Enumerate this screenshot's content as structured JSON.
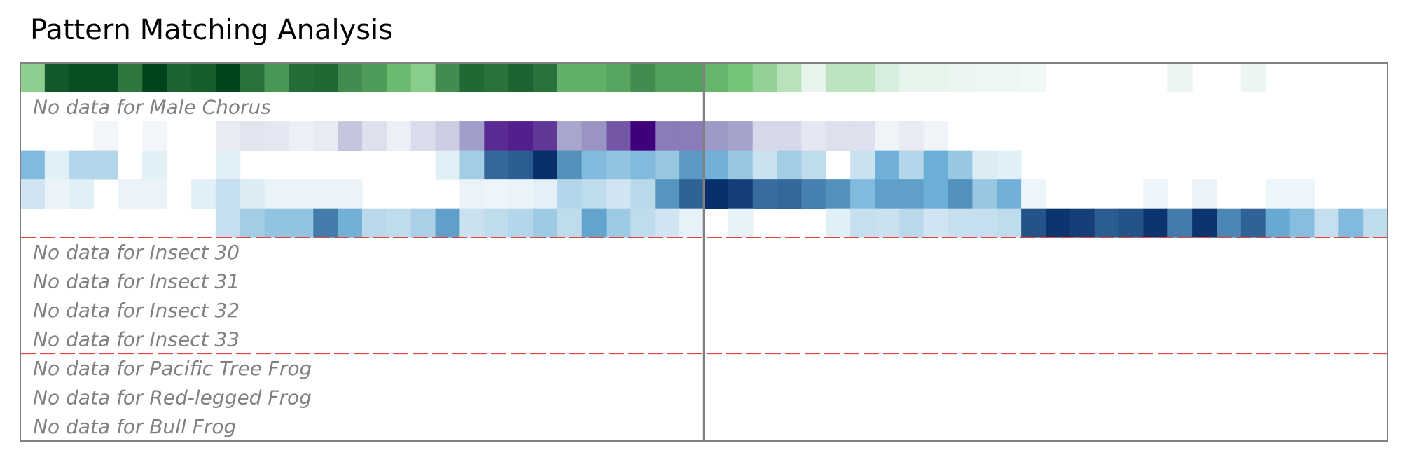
{
  "chart_data": {
    "type": "heatmap",
    "title": "Pattern Matching Analysis",
    "grid": false,
    "columns": 56,
    "group_separators_after_rows": [
      5,
      9
    ],
    "center_divider_after_column": 28,
    "colors": {
      "green": "#00441b",
      "purple": "#3f007d",
      "blue": "#08306b",
      "separator": "#e0443a",
      "frame": "#808080",
      "no_data_text": "#808080"
    },
    "rows": [
      {
        "palette": "green",
        "values": [
          0.4,
          0.92,
          0.96,
          0.96,
          0.8,
          1.0,
          0.88,
          0.9,
          1.0,
          0.82,
          0.68,
          0.84,
          0.86,
          0.72,
          0.66,
          0.54,
          0.42,
          0.72,
          0.86,
          0.82,
          0.88,
          0.82,
          0.58,
          0.58,
          0.62,
          0.72,
          0.64,
          0.64,
          0.56,
          0.5,
          0.38,
          0.24,
          0.06,
          0.22,
          0.22,
          0.12,
          0.06,
          0.06,
          0.05,
          0.04,
          0.04,
          0.03,
          0,
          0,
          0,
          0,
          0,
          0.05,
          0,
          0,
          0.05,
          0,
          0,
          0,
          0,
          0
        ]
      },
      {
        "label": "No data for Male Chorus"
      },
      {
        "palette": "purple",
        "values": [
          0,
          0,
          0,
          0.03,
          0,
          0.03,
          0,
          0,
          0.08,
          0.12,
          0.1,
          0.06,
          0.08,
          0.28,
          0.14,
          0.06,
          0.16,
          0.24,
          0.48,
          0.86,
          0.9,
          0.82,
          0.44,
          0.52,
          0.72,
          1.0,
          0.6,
          0.6,
          0.5,
          0.46,
          0.18,
          0.18,
          0.1,
          0.14,
          0.14,
          0.04,
          0.08,
          0.04,
          0,
          0,
          0,
          0,
          0,
          0,
          0,
          0,
          0,
          0,
          0,
          0,
          0,
          0,
          0,
          0,
          0,
          0
        ]
      },
      {
        "palette": "blue",
        "values": [
          0.42,
          0.08,
          0.24,
          0.24,
          0,
          0.08,
          0,
          0,
          0.08,
          0,
          0,
          0,
          0,
          0,
          0,
          0,
          0,
          0.08,
          0.3,
          0.78,
          0.82,
          1.0,
          0.62,
          0.42,
          0.36,
          0.42,
          0.34,
          0.58,
          0.48,
          0.34,
          0.16,
          0.3,
          0.2,
          0,
          0.16,
          0.48,
          0.24,
          0.5,
          0.34,
          0.1,
          0.08,
          0,
          0,
          0,
          0,
          0,
          0,
          0,
          0,
          0,
          0,
          0,
          0,
          0,
          0,
          0
        ]
      },
      {
        "palette": "blue",
        "values": [
          0.14,
          0.05,
          0.08,
          0,
          0.05,
          0.05,
          0,
          0.08,
          0.18,
          0.1,
          0.05,
          0.05,
          0.05,
          0.05,
          0,
          0,
          0,
          0,
          0.05,
          0.04,
          0.05,
          0.07,
          0.24,
          0.2,
          0.14,
          0.22,
          0.6,
          0.8,
          1.0,
          0.94,
          0.76,
          0.78,
          0.68,
          0.62,
          0.42,
          0.56,
          0.56,
          0.5,
          0.62,
          0.34,
          0.48,
          0.04,
          0,
          0,
          0,
          0,
          0.04,
          0,
          0.05,
          0,
          0,
          0.04,
          0.04,
          0,
          0,
          0
        ]
      },
      {
        "palette": "blue",
        "values": [
          0,
          0,
          0,
          0,
          0,
          0,
          0,
          0,
          0.18,
          0.3,
          0.36,
          0.36,
          0.7,
          0.48,
          0.22,
          0.2,
          0.28,
          0.56,
          0.16,
          0.2,
          0.24,
          0.32,
          0.2,
          0.54,
          0.32,
          0.2,
          0.14,
          0.06,
          0,
          0.06,
          0,
          0,
          0,
          0.08,
          0.18,
          0.16,
          0.22,
          0.14,
          0.18,
          0.18,
          0.2,
          0.86,
          0.98,
          0.94,
          0.82,
          0.86,
          0.98,
          0.7,
          0.98,
          0.66,
          0.8,
          0.52,
          0.4,
          0.18,
          0.42,
          0.2
        ]
      },
      {
        "label": "No data for Insect 30"
      },
      {
        "label": "No data for Insect 31"
      },
      {
        "label": "No data for Insect 32"
      },
      {
        "label": "No data for Insect 33"
      },
      {
        "label": "No data for Pacific Tree Frog"
      },
      {
        "label": "No data for Red-legged Frog"
      },
      {
        "label": "No data for Bull Frog"
      }
    ]
  }
}
